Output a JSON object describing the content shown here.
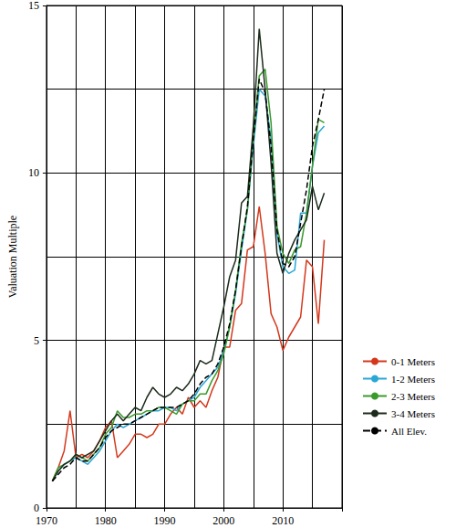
{
  "chart_data": {
    "type": "line",
    "y_label": "Valuation Multiple",
    "x": [
      1971,
      1972,
      1973,
      1974,
      1975,
      1976,
      1977,
      1978,
      1979,
      1980,
      1981,
      1982,
      1983,
      1984,
      1985,
      1986,
      1987,
      1988,
      1989,
      1990,
      1991,
      1992,
      1993,
      1994,
      1995,
      1996,
      1997,
      1998,
      1999,
      2000,
      2001,
      2002,
      2003,
      2004,
      2005,
      2006,
      2007,
      2008,
      2009,
      2010,
      2011,
      2012,
      2013,
      2014,
      2015,
      2016,
      2017
    ],
    "xlim": [
      1970,
      2020
    ],
    "xticks": [
      1970,
      1980,
      1990,
      2000,
      2010
    ],
    "ylim": [
      0,
      15
    ],
    "yticks": [
      0,
      5,
      10,
      15
    ],
    "grid": true,
    "legend": "right",
    "series": [
      {
        "name": "0-1 Meters",
        "color": "#d4381c",
        "line_style": "solid",
        "values": [
          0.8,
          1.2,
          1.7,
          2.9,
          1.5,
          1.6,
          1.5,
          1.7,
          2.0,
          2.4,
          2.6,
          1.5,
          1.7,
          1.9,
          2.2,
          2.2,
          2.1,
          2.2,
          2.5,
          2.5,
          2.8,
          3.0,
          2.8,
          3.3,
          3.0,
          3.2,
          3.0,
          3.5,
          3.9,
          4.8,
          4.8,
          5.9,
          6.1,
          7.7,
          7.8,
          9.0,
          7.6,
          5.8,
          5.4,
          4.7,
          5.1,
          5.4,
          5.7,
          7.4,
          7.2,
          5.5,
          8.0
        ]
      },
      {
        "name": "1-2 Meters",
        "color": "#2aa7d6",
        "line_style": "solid",
        "values": [
          0.8,
          1.1,
          1.3,
          1.4,
          1.5,
          1.4,
          1.3,
          1.5,
          1.7,
          2.0,
          2.3,
          2.5,
          2.4,
          2.5,
          2.6,
          2.7,
          2.8,
          2.9,
          2.9,
          3.0,
          3.0,
          2.9,
          3.1,
          3.2,
          3.3,
          3.6,
          3.8,
          4.0,
          4.2,
          4.7,
          5.4,
          6.4,
          7.7,
          8.9,
          10.8,
          12.5,
          12.3,
          11.0,
          8.2,
          7.2,
          7.0,
          7.1,
          8.8,
          8.8,
          10.2,
          11.2,
          11.4
        ]
      },
      {
        "name": "2-3 Meters",
        "color": "#3a9a2c",
        "line_style": "solid",
        "values": [
          0.8,
          1.2,
          1.3,
          1.4,
          1.6,
          1.5,
          1.4,
          1.6,
          1.8,
          2.2,
          2.4,
          2.9,
          2.7,
          2.7,
          2.8,
          2.8,
          2.9,
          2.9,
          3.0,
          3.0,
          2.9,
          2.8,
          3.1,
          3.2,
          3.2,
          3.4,
          3.4,
          3.8,
          4.1,
          4.6,
          5.4,
          6.5,
          7.9,
          8.9,
          11.0,
          12.9,
          13.1,
          11.5,
          8.4,
          7.6,
          7.3,
          7.7,
          7.8,
          8.8,
          10.2,
          11.6,
          11.5
        ]
      },
      {
        "name": "3-4 Meters",
        "color": "#1c2b1c",
        "line_style": "solid",
        "values": [
          0.8,
          1.1,
          1.3,
          1.4,
          1.6,
          1.5,
          1.6,
          1.7,
          2.0,
          2.3,
          2.6,
          2.8,
          2.6,
          2.8,
          3.0,
          2.9,
          3.3,
          3.6,
          3.4,
          3.3,
          3.4,
          3.6,
          3.5,
          3.7,
          4.0,
          4.4,
          4.3,
          4.4,
          5.2,
          6.0,
          6.9,
          7.4,
          9.1,
          9.3,
          11.4,
          14.3,
          12.5,
          10.3,
          7.6,
          7.0,
          7.6,
          8.0,
          8.3,
          8.6,
          9.6,
          8.9,
          9.4
        ]
      },
      {
        "name": "All Elev.",
        "color": "#000000",
        "line_style": "dashed",
        "values": [
          0.8,
          1.0,
          1.2,
          1.3,
          1.5,
          1.4,
          1.4,
          1.6,
          1.8,
          2.1,
          2.3,
          2.4,
          2.5,
          2.5,
          2.6,
          2.7,
          2.8,
          2.9,
          3.0,
          3.0,
          3.0,
          3.0,
          3.1,
          3.2,
          3.4,
          3.7,
          3.9,
          4.0,
          4.3,
          4.8,
          5.5,
          6.5,
          7.8,
          9.0,
          11.0,
          12.8,
          12.4,
          10.8,
          8.3,
          7.3,
          7.2,
          7.5,
          8.5,
          9.5,
          10.8,
          11.6,
          12.5
        ]
      }
    ]
  }
}
